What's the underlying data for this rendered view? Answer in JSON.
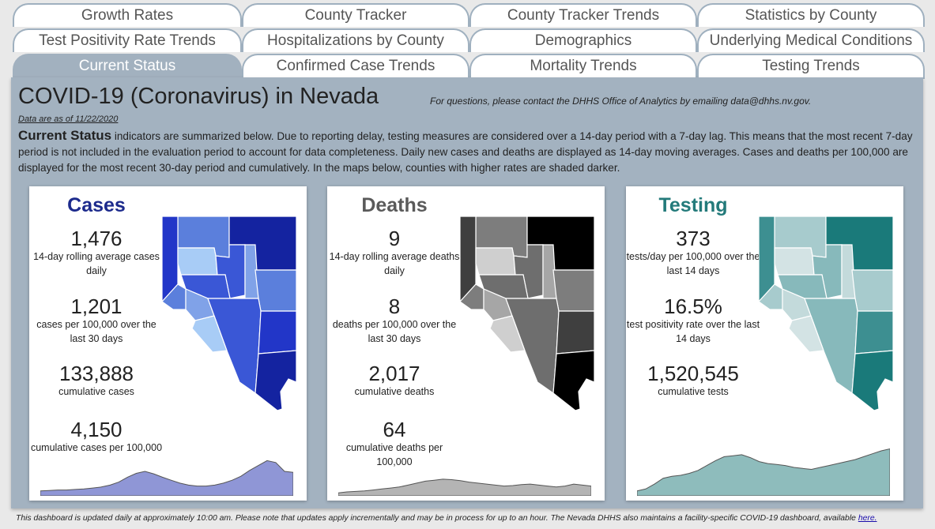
{
  "tabs": {
    "row1": [
      "Growth Rates",
      "County Tracker",
      "County Tracker Trends",
      "Statistics by County"
    ],
    "row2": [
      "Test Positivity Rate Trends",
      "Hospitalizations by County",
      "Demographics",
      "Underlying Medical Conditions"
    ],
    "row3": [
      "Current Status",
      "Confirmed Case Trends",
      "Mortality Trends",
      "Testing Trends"
    ],
    "active": "Current Status"
  },
  "header": {
    "title": "COVID-19 (Coronavirus) in Nevada",
    "contact": "For questions, please contact the DHHS Office of Analytics by emailing data@dhhs.nv.gov.",
    "as_of": "Data are as of 11/22/2020"
  },
  "intro": {
    "heading": "Current Status",
    "body": " indicators are summarized below.  Due to reporting delay, testing measures are considered over a 14-day period with a 7-day lag.  This means that the most recent 7-day period is not included in the evaluation period to account for data completeness.  Daily new cases and deaths are displayed as 14-day moving averages.  Cases and deaths per 100,000 are displayed for the most recent 30-day period and cumulatively.  In the maps below, counties with higher rates are shaded darker."
  },
  "cards": {
    "cases": {
      "title": "Cases",
      "title_color": "#1c2a8c",
      "map_colors": {
        "c0": "#1423a0",
        "c1": "#2236c8",
        "c2": "#3a57d6",
        "c3": "#5b7fdc",
        "c4": "#80a2e8",
        "c5": "#a8ccf6"
      },
      "spark_fill": "#8f96d6",
      "stats": [
        {
          "num": "1,476",
          "label": "14-day rolling average cases daily"
        },
        {
          "num": "1,201",
          "label": "cases per 100,000 over the last 30 days"
        },
        {
          "num": "133,888",
          "label": "cumulative cases"
        },
        {
          "num": "4,150",
          "label": "cumulative cases per 100,000"
        }
      ]
    },
    "deaths": {
      "title": "Deaths",
      "title_color": "#5a5a5a",
      "map_colors": {
        "c0": "#000000",
        "c1": "#3f3f3f",
        "c2": "#6e6e6e",
        "c3": "#7d7d7d",
        "c4": "#a6a6a6",
        "c5": "#cfcfcf"
      },
      "spark_fill": "#b4b4b4",
      "stats": [
        {
          "num": "9",
          "label": "14-day rolling average deaths daily"
        },
        {
          "num": "8",
          "label": "deaths per 100,000 over the last 30 days"
        },
        {
          "num": "2,017",
          "label": "cumulative deaths"
        },
        {
          "num": "64",
          "label": "cumulative deaths per 100,000"
        }
      ]
    },
    "testing": {
      "title": "Testing",
      "title_color": "#237a7a",
      "map_colors": {
        "c0": "#1a7a7a",
        "c1": "#3d8f91",
        "c2": "#87b9bb",
        "c3": "#a7cbcd",
        "c4": "#c3dadb",
        "c5": "#d3e3e4"
      },
      "spark_fill": "#8ebcbc",
      "stats": [
        {
          "num": "373",
          "label": "tests/day per 100,000 over the last 14 days"
        },
        {
          "num": "16.5%",
          "label": "test positivity rate over the last 14 days"
        },
        {
          "num": "1,520,545",
          "label": "cumulative tests"
        }
      ]
    }
  },
  "footer": {
    "text": "This dashboard is updated daily at approximately 10:00 am. Please note that updates apply incrementally and may be in process for up to an hour.  The Nevada DHHS also maintains a facility-specific COVID-19 dashboard, available ",
    "link": "here."
  }
}
